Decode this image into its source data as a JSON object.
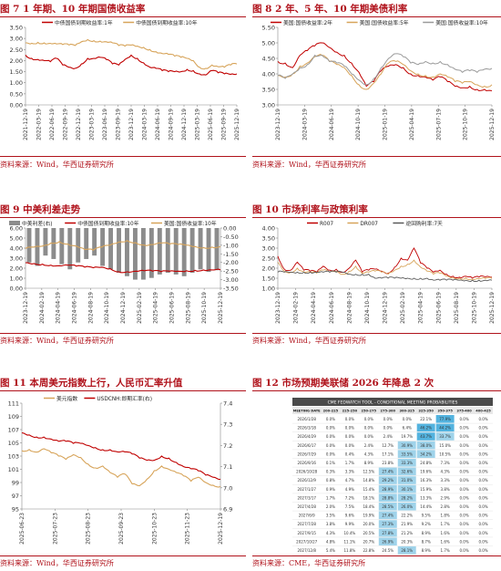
{
  "panels": [
    {
      "id": "p1",
      "title": "图 7 1 年期、10 年期国债收益率",
      "source": "资料来源：Wind，华西证券研究所"
    },
    {
      "id": "p2",
      "title": "图 8 2 年、5 年、10 年期美债利率",
      "source": "资料来源：Wind，华西证券研究所"
    },
    {
      "id": "p3",
      "title": "图 9 中美利差走势",
      "source": "资料来源：Wind，华西证券研究所"
    },
    {
      "id": "p4",
      "title": "图 10 市场利率与政策利率",
      "source": "资料来源：Wind，华西证券研究所"
    },
    {
      "id": "p5",
      "title": "图 11 本周美元指数上行，人民币汇率升值",
      "source": "资料来源：Wind，华西证券研究所"
    },
    {
      "id": "p6",
      "title": "图 12 市场预期美联储 2026 年降息 2 次",
      "source": "资料来源：CME，华西证券研究所"
    }
  ],
  "chart_data": [
    {
      "id": "c1",
      "type": "line",
      "title": "",
      "ylim": [
        0,
        3.5
      ],
      "yticks": [
        "0.00",
        "0.50",
        "1.00",
        "1.50",
        "2.00",
        "2.50",
        "3.00",
        "3.50"
      ],
      "xticks": [
        "2021-12-19",
        "2022-03-19",
        "2022-06-19",
        "2022-09-19",
        "2022-12-19",
        "2023-03-19",
        "2023-06-19",
        "2023-09-19",
        "2023-12-19",
        "2024-03-19",
        "2024-06-19",
        "2024-09-19",
        "2024-12-19",
        "2025-03-19",
        "2025-06-19",
        "2025-09-19",
        "2025-12-19"
      ],
      "series": [
        {
          "name": "中债国债到期收益率:1年",
          "color": "#c00000",
          "values": [
            2.25,
            2.1,
            2.05,
            2.0,
            1.95,
            2.1,
            1.8,
            1.7,
            1.65,
            1.85,
            2.1,
            2.1,
            2.15,
            2.05,
            1.85,
            1.8,
            2.05,
            2.25,
            2.1,
            1.9,
            1.7,
            1.65,
            1.55,
            1.5,
            1.5,
            1.5,
            1.6,
            1.55,
            1.4,
            1.35,
            1.55,
            1.45,
            1.4,
            1.38,
            1.4
          ]
        },
        {
          "name": "中债国债到期收益率:10年",
          "color": "#d7a45a",
          "values": [
            2.8,
            2.78,
            2.82,
            2.8,
            2.78,
            2.75,
            2.72,
            2.7,
            2.68,
            2.85,
            2.95,
            2.9,
            2.88,
            2.85,
            2.8,
            2.68,
            2.65,
            2.7,
            2.65,
            2.6,
            2.5,
            2.4,
            2.32,
            2.28,
            2.2,
            2.15,
            2.1,
            2.0,
            1.7,
            1.65,
            1.8,
            1.72,
            1.7,
            1.8,
            1.85
          ]
        }
      ]
    },
    {
      "id": "c2",
      "type": "line",
      "title": "",
      "ylim": [
        3.0,
        5.5
      ],
      "yticks": [
        "3.00",
        "3.50",
        "4.00",
        "4.50",
        "5.00",
        "5.50"
      ],
      "xticks": [
        "2023-12-19",
        "2024-03-19",
        "2024-06-19",
        "2024-10-19",
        "2025-01-19",
        "2025-04-19",
        "2025-07-19",
        "2025-10-19",
        "2025-12-19"
      ],
      "series": [
        {
          "name": "美国:国债收益率:2年",
          "color": "#c00000",
          "values": [
            4.4,
            4.35,
            4.2,
            4.6,
            4.75,
            4.9,
            5.0,
            4.85,
            4.7,
            4.6,
            4.35,
            4.05,
            3.6,
            3.75,
            4.1,
            4.25,
            4.3,
            4.2,
            4.0,
            3.95,
            3.9,
            3.8,
            3.9,
            3.75,
            3.6,
            3.55,
            3.6,
            3.5,
            3.5,
            3.45
          ]
        },
        {
          "name": "美国:国债收益率:5年",
          "color": "#d7a45a",
          "values": [
            3.95,
            3.9,
            4.0,
            4.25,
            4.35,
            4.55,
            4.6,
            4.4,
            4.3,
            4.2,
            3.95,
            3.65,
            3.5,
            3.7,
            4.0,
            4.35,
            4.4,
            4.3,
            4.1,
            4.0,
            3.95,
            3.9,
            4.0,
            3.9,
            3.75,
            3.7,
            3.75,
            3.65,
            3.6,
            3.65
          ]
        },
        {
          "name": "美国:国债收益率:10年",
          "color": "#9a9a9a",
          "values": [
            3.95,
            3.85,
            4.0,
            4.2,
            4.3,
            4.6,
            4.6,
            4.4,
            4.35,
            4.25,
            4.0,
            3.8,
            3.65,
            3.85,
            4.2,
            4.5,
            4.65,
            4.55,
            4.35,
            4.3,
            4.4,
            4.35,
            4.4,
            4.3,
            4.15,
            4.05,
            4.1,
            4.05,
            4.15,
            4.18
          ]
        }
      ]
    },
    {
      "id": "c3",
      "type": "line",
      "title": "",
      "ylim": [
        0,
        6
      ],
      "ylim_right": [
        -3.5,
        0
      ],
      "yticks": [
        "0.00",
        "1.00",
        "2.00",
        "3.00",
        "4.00",
        "5.00",
        "6.00"
      ],
      "yticks_right": [
        "0.00",
        "-0.50",
        "-1.00",
        "-1.50",
        "-2.00",
        "-2.50",
        "-3.00",
        "-3.50"
      ],
      "xticks": [
        "2023-12-19",
        "2024-02-19",
        "2024-04-19",
        "2024-06-19",
        "2024-08-19",
        "2024-10-19",
        "2024-12-19",
        "2025-02-19",
        "2025-04-19",
        "2025-06-19",
        "2025-08-19",
        "2025-10-19",
        "2025-12-19"
      ],
      "series": [
        {
          "name": "中美利差(右)",
          "color": "#8c8c8c",
          "values": [
            -2.0,
            -2.2,
            -1.6,
            -1.8,
            -2.1,
            -2.4,
            -2.0,
            -1.8,
            -1.6,
            -2.2,
            -2.4,
            -2.6,
            -2.8,
            -3.0,
            -3.0,
            -2.9,
            -2.7,
            -2.6,
            -2.7,
            -2.8,
            -2.6,
            -2.4,
            -2.55,
            -2.45
          ]
        },
        {
          "name": "中债国债到期收益率:10年",
          "color": "#c00000",
          "values": [
            2.55,
            2.45,
            2.4,
            2.3,
            2.25,
            2.3,
            2.2,
            2.1,
            2.05,
            2.1,
            1.95,
            1.65,
            1.65,
            1.7,
            1.75,
            1.7,
            1.65,
            1.7,
            1.7,
            1.75,
            1.78,
            1.82,
            1.83,
            1.84
          ]
        },
        {
          "name": "美国:国债收益率:10年",
          "color": "#d7a45a",
          "values": [
            3.95,
            4.1,
            4.2,
            4.5,
            4.65,
            4.4,
            4.2,
            3.85,
            3.8,
            4.1,
            4.3,
            4.6,
            4.75,
            4.55,
            4.3,
            4.35,
            4.5,
            4.4,
            4.35,
            4.3,
            4.15,
            4.05,
            4.1,
            4.15
          ]
        }
      ]
    },
    {
      "id": "c4",
      "type": "line",
      "title": "",
      "ylim": [
        1.0,
        4.0
      ],
      "yticks": [
        "1.00",
        "1.50",
        "2.00",
        "2.50",
        "3.00",
        "3.50",
        "4.00"
      ],
      "xticks": [
        "2023-12-19",
        "2024-02-19",
        "2024-04-19",
        "2024-06-19",
        "2024-08-19",
        "2024-10-19",
        "2024-12-19",
        "2025-02-19",
        "2025-04-19",
        "2025-06-19",
        "2025-08-19",
        "2025-10-19",
        "2025-12-19"
      ],
      "series": [
        {
          "name": "R007",
          "color": "#c00000",
          "values": [
            2.6,
            1.95,
            1.9,
            2.3,
            1.9,
            1.85,
            1.8,
            2.1,
            1.9,
            1.95,
            1.8,
            2.0,
            2.4,
            1.8,
            1.9,
            1.95,
            1.85,
            1.75,
            2.05,
            2.5,
            2.4,
            3.0,
            2.25,
            2.0,
            1.8,
            1.9,
            1.7,
            1.6,
            1.55,
            1.6,
            1.5,
            1.55,
            1.55,
            1.55
          ]
        },
        {
          "name": "DR007",
          "color": "#d7a45a",
          "values": [
            2.3,
            1.85,
            1.8,
            2.0,
            1.82,
            1.8,
            1.75,
            1.9,
            1.8,
            1.85,
            1.7,
            1.85,
            2.1,
            1.75,
            1.8,
            1.85,
            1.8,
            1.7,
            1.9,
            2.1,
            2.2,
            2.4,
            2.05,
            1.85,
            1.7,
            1.75,
            1.6,
            1.52,
            1.5,
            1.52,
            1.45,
            1.48,
            1.48,
            1.48
          ]
        },
        {
          "name": "逆回购利率:7天",
          "color": "#595959",
          "values": [
            1.8,
            1.8,
            1.8,
            1.8,
            1.8,
            1.8,
            1.8,
            1.8,
            1.8,
            1.8,
            1.8,
            1.7,
            1.7,
            1.7,
            1.7,
            1.5,
            1.5,
            1.5,
            1.5,
            1.5,
            1.5,
            1.5,
            1.5,
            1.5,
            1.4,
            1.4,
            1.4,
            1.4,
            1.4,
            1.4,
            1.4,
            1.4,
            1.4,
            1.4
          ]
        }
      ]
    },
    {
      "id": "c5",
      "type": "line",
      "title": "",
      "ylim": [
        95,
        111
      ],
      "ylim_right": [
        6.9,
        7.4
      ],
      "yticks": [
        "95",
        "97",
        "99",
        "101",
        "103",
        "105",
        "107",
        "109",
        "111"
      ],
      "yticks_right": [
        "6.9",
        "7.0",
        "7.1",
        "7.2",
        "7.3",
        "7.4"
      ],
      "xticks": [
        "2025-06-23",
        "2025-07-23",
        "2025-08-23",
        "2025-09-23",
        "2025-10-23",
        "2025-11-23",
        "2025-12-19"
      ],
      "xticks_full": [
        "2025-06-23",
        "2025-07-23",
        "2025-08-23",
        "2025-09-23",
        "2025-10-23",
        "2025-11-23",
        "2025-12-19"
      ],
      "series": [
        {
          "name": "美元指数",
          "color": "#d7a45a",
          "values": [
            103.8,
            104.0,
            103.6,
            104.1,
            103.5,
            103.0,
            102.5,
            103.2,
            102.8,
            101.8,
            101.2,
            101.5,
            100.5,
            99.8,
            100.3,
            98.8,
            98.5,
            99.5,
            100.8,
            101.5,
            101.0,
            100.5,
            100.0,
            99.2,
            99.8,
            99.0,
            98.6,
            98.4
          ]
        },
        {
          "name": "USDCNH:即期汇率(右)",
          "color": "#c00000",
          "values": [
            7.26,
            7.25,
            7.24,
            7.24,
            7.23,
            7.22,
            7.22,
            7.21,
            7.21,
            7.2,
            7.19,
            7.18,
            7.18,
            7.17,
            7.17,
            7.16,
            7.14,
            7.13,
            7.13,
            7.15,
            7.14,
            7.12,
            7.1,
            7.09,
            7.08,
            7.06,
            7.05,
            7.04
          ]
        }
      ]
    }
  ],
  "fed_table": {
    "header_title": "CME FEDWATCH TOOL - CONDITIONAL MEETING PROBABILITIES",
    "columns": [
      "MEETING DATE",
      "200-225",
      "225-250",
      "250-275",
      "275-300",
      "300-325",
      "325-350",
      "350-375",
      "375-400",
      "400-425"
    ],
    "rows": [
      [
        "2026/1/28",
        "0.0%",
        "0.0%",
        "0.0%",
        "0.0%",
        "0.0%",
        "22.1%",
        "77.9%",
        "0.0%",
        "0.0%"
      ],
      [
        "2026/3/18",
        "0.0%",
        "0.0%",
        "0.0%",
        "0.0%",
        "6.4%",
        "46.2%",
        "44.2%",
        "0.0%",
        "0.0%"
      ],
      [
        "2026/4/29",
        "0.0%",
        "0.0%",
        "0.0%",
        "2.4%",
        "19.7%",
        "43.7%",
        "33.7%",
        "0.0%",
        "0.0%"
      ],
      [
        "2026/6/17",
        "0.0%",
        "0.0%",
        "2.4%",
        "12.7%",
        "30.9%",
        "38.0%",
        "15.0%",
        "0.0%",
        "0.0%"
      ],
      [
        "2026/7/29",
        "0.0%",
        "0.4%",
        "4.3%",
        "17.1%",
        "33.5%",
        "34.2%",
        "10.5%",
        "0.0%",
        "0.0%"
      ],
      [
        "2026/9/16",
        "0.1%",
        "1.7%",
        "8.9%",
        "23.8%",
        "33.3%",
        "24.8%",
        "7.3%",
        "0.0%",
        "0.0%"
      ],
      [
        "2026/10/28",
        "0.3%",
        "3.3%",
        "12.5%",
        "27.4%",
        "32.6%",
        "19.6%",
        "4.3%",
        "0.0%",
        "0.0%"
      ],
      [
        "2026/12/9",
        "0.8%",
        "4.7%",
        "14.8%",
        "29.2%",
        "31.0%",
        "16.3%",
        "3.3%",
        "0.0%",
        "0.0%"
      ],
      [
        "2027/1/27",
        "0.9%",
        "4.9%",
        "15.4%",
        "28.9%",
        "30.1%",
        "15.9%",
        "3.8%",
        "0.0%",
        "0.0%"
      ],
      [
        "2027/3/17",
        "1.7%",
        "7.2%",
        "18.1%",
        "28.8%",
        "28.2%",
        "13.3%",
        "2.9%",
        "0.0%",
        "0.0%"
      ],
      [
        "2027/4/28",
        "2.0%",
        "7.5%",
        "18.4%",
        "28.5%",
        "26.0%",
        "14.4%",
        "2.8%",
        "0.0%",
        "0.0%"
      ],
      [
        "2027/6/9",
        "3.5%",
        "9.6%",
        "19.9%",
        "27.4%",
        "22.2%",
        "9.5%",
        "1.8%",
        "0.0%",
        "0.0%"
      ],
      [
        "2027/7/28",
        "3.8%",
        "9.9%",
        "20.0%",
        "27.3%",
        "21.9%",
        "9.2%",
        "1.7%",
        "0.0%",
        "0.0%"
      ],
      [
        "2027/9/15",
        "4.3%",
        "10.4%",
        "20.5%",
        "27.8%",
        "21.2%",
        "8.9%",
        "1.6%",
        "0.0%",
        "0.0%"
      ],
      [
        "2027/10/27",
        "4.8%",
        "11.1%",
        "20.7%",
        "26.9%",
        "20.3%",
        "8.7%",
        "1.6%",
        "0.0%",
        "0.0%"
      ],
      [
        "2027/12/8",
        "5.4%",
        "11.8%",
        "22.8%",
        "24.5%",
        "28.1%",
        "8.9%",
        "1.7%",
        "0.0%",
        "0.0%"
      ]
    ],
    "highlight_color": "#9fd3ea",
    "highlight_strong": "#53b3df"
  }
}
